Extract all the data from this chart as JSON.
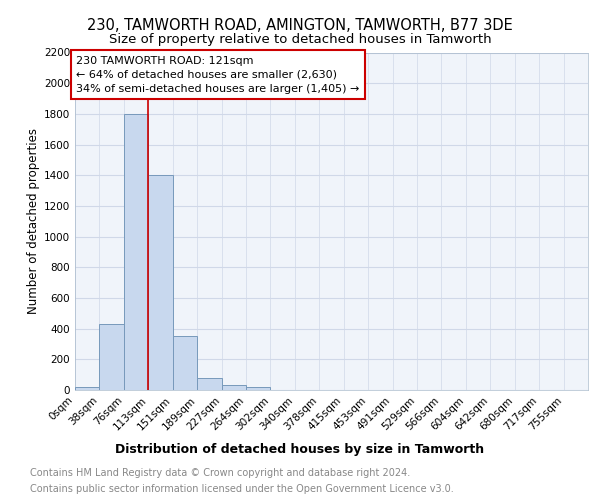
{
  "title1": "230, TAMWORTH ROAD, AMINGTON, TAMWORTH, B77 3DE",
  "title2": "Size of property relative to detached houses in Tamworth",
  "xlabel": "Distribution of detached houses by size in Tamworth",
  "ylabel": "Number of detached properties",
  "bar_labels": [
    "0sqm",
    "38sqm",
    "76sqm",
    "113sqm",
    "151sqm",
    "189sqm",
    "227sqm",
    "264sqm",
    "302sqm",
    "340sqm",
    "378sqm",
    "415sqm",
    "453sqm",
    "491sqm",
    "529sqm",
    "566sqm",
    "604sqm",
    "642sqm",
    "680sqm",
    "717sqm",
    "755sqm"
  ],
  "bar_values": [
    20,
    430,
    1800,
    1400,
    350,
    80,
    30,
    20,
    0,
    0,
    0,
    0,
    0,
    0,
    0,
    0,
    0,
    0,
    0,
    0,
    0
  ],
  "bar_color": "#c8d8ee",
  "bar_edge_color": "#7799bb",
  "property_line_x": 113,
  "property_line_color": "#cc0000",
  "annotation_line1": "230 TAMWORTH ROAD: 121sqm",
  "annotation_line2": "← 64% of detached houses are smaller (2,630)",
  "annotation_line3": "34% of semi-detached houses are larger (1,405) →",
  "annotation_box_facecolor": "#ffffff",
  "annotation_border_color": "#cc0000",
  "ylim": [
    0,
    2200
  ],
  "yticks": [
    0,
    200,
    400,
    600,
    800,
    1000,
    1200,
    1400,
    1600,
    1800,
    2000,
    2200
  ],
  "bin_width": 38,
  "footer_text1": "Contains HM Land Registry data © Crown copyright and database right 2024.",
  "footer_text2": "Contains public sector information licensed under the Open Government Licence v3.0.",
  "bg_color": "#f0f4fa",
  "grid_color": "#d0d8e8",
  "title1_fontsize": 10.5,
  "title2_fontsize": 9.5,
  "xlabel_fontsize": 9,
  "ylabel_fontsize": 8.5,
  "tick_fontsize": 7.5,
  "annotation_fontsize": 8,
  "footer_fontsize": 7
}
